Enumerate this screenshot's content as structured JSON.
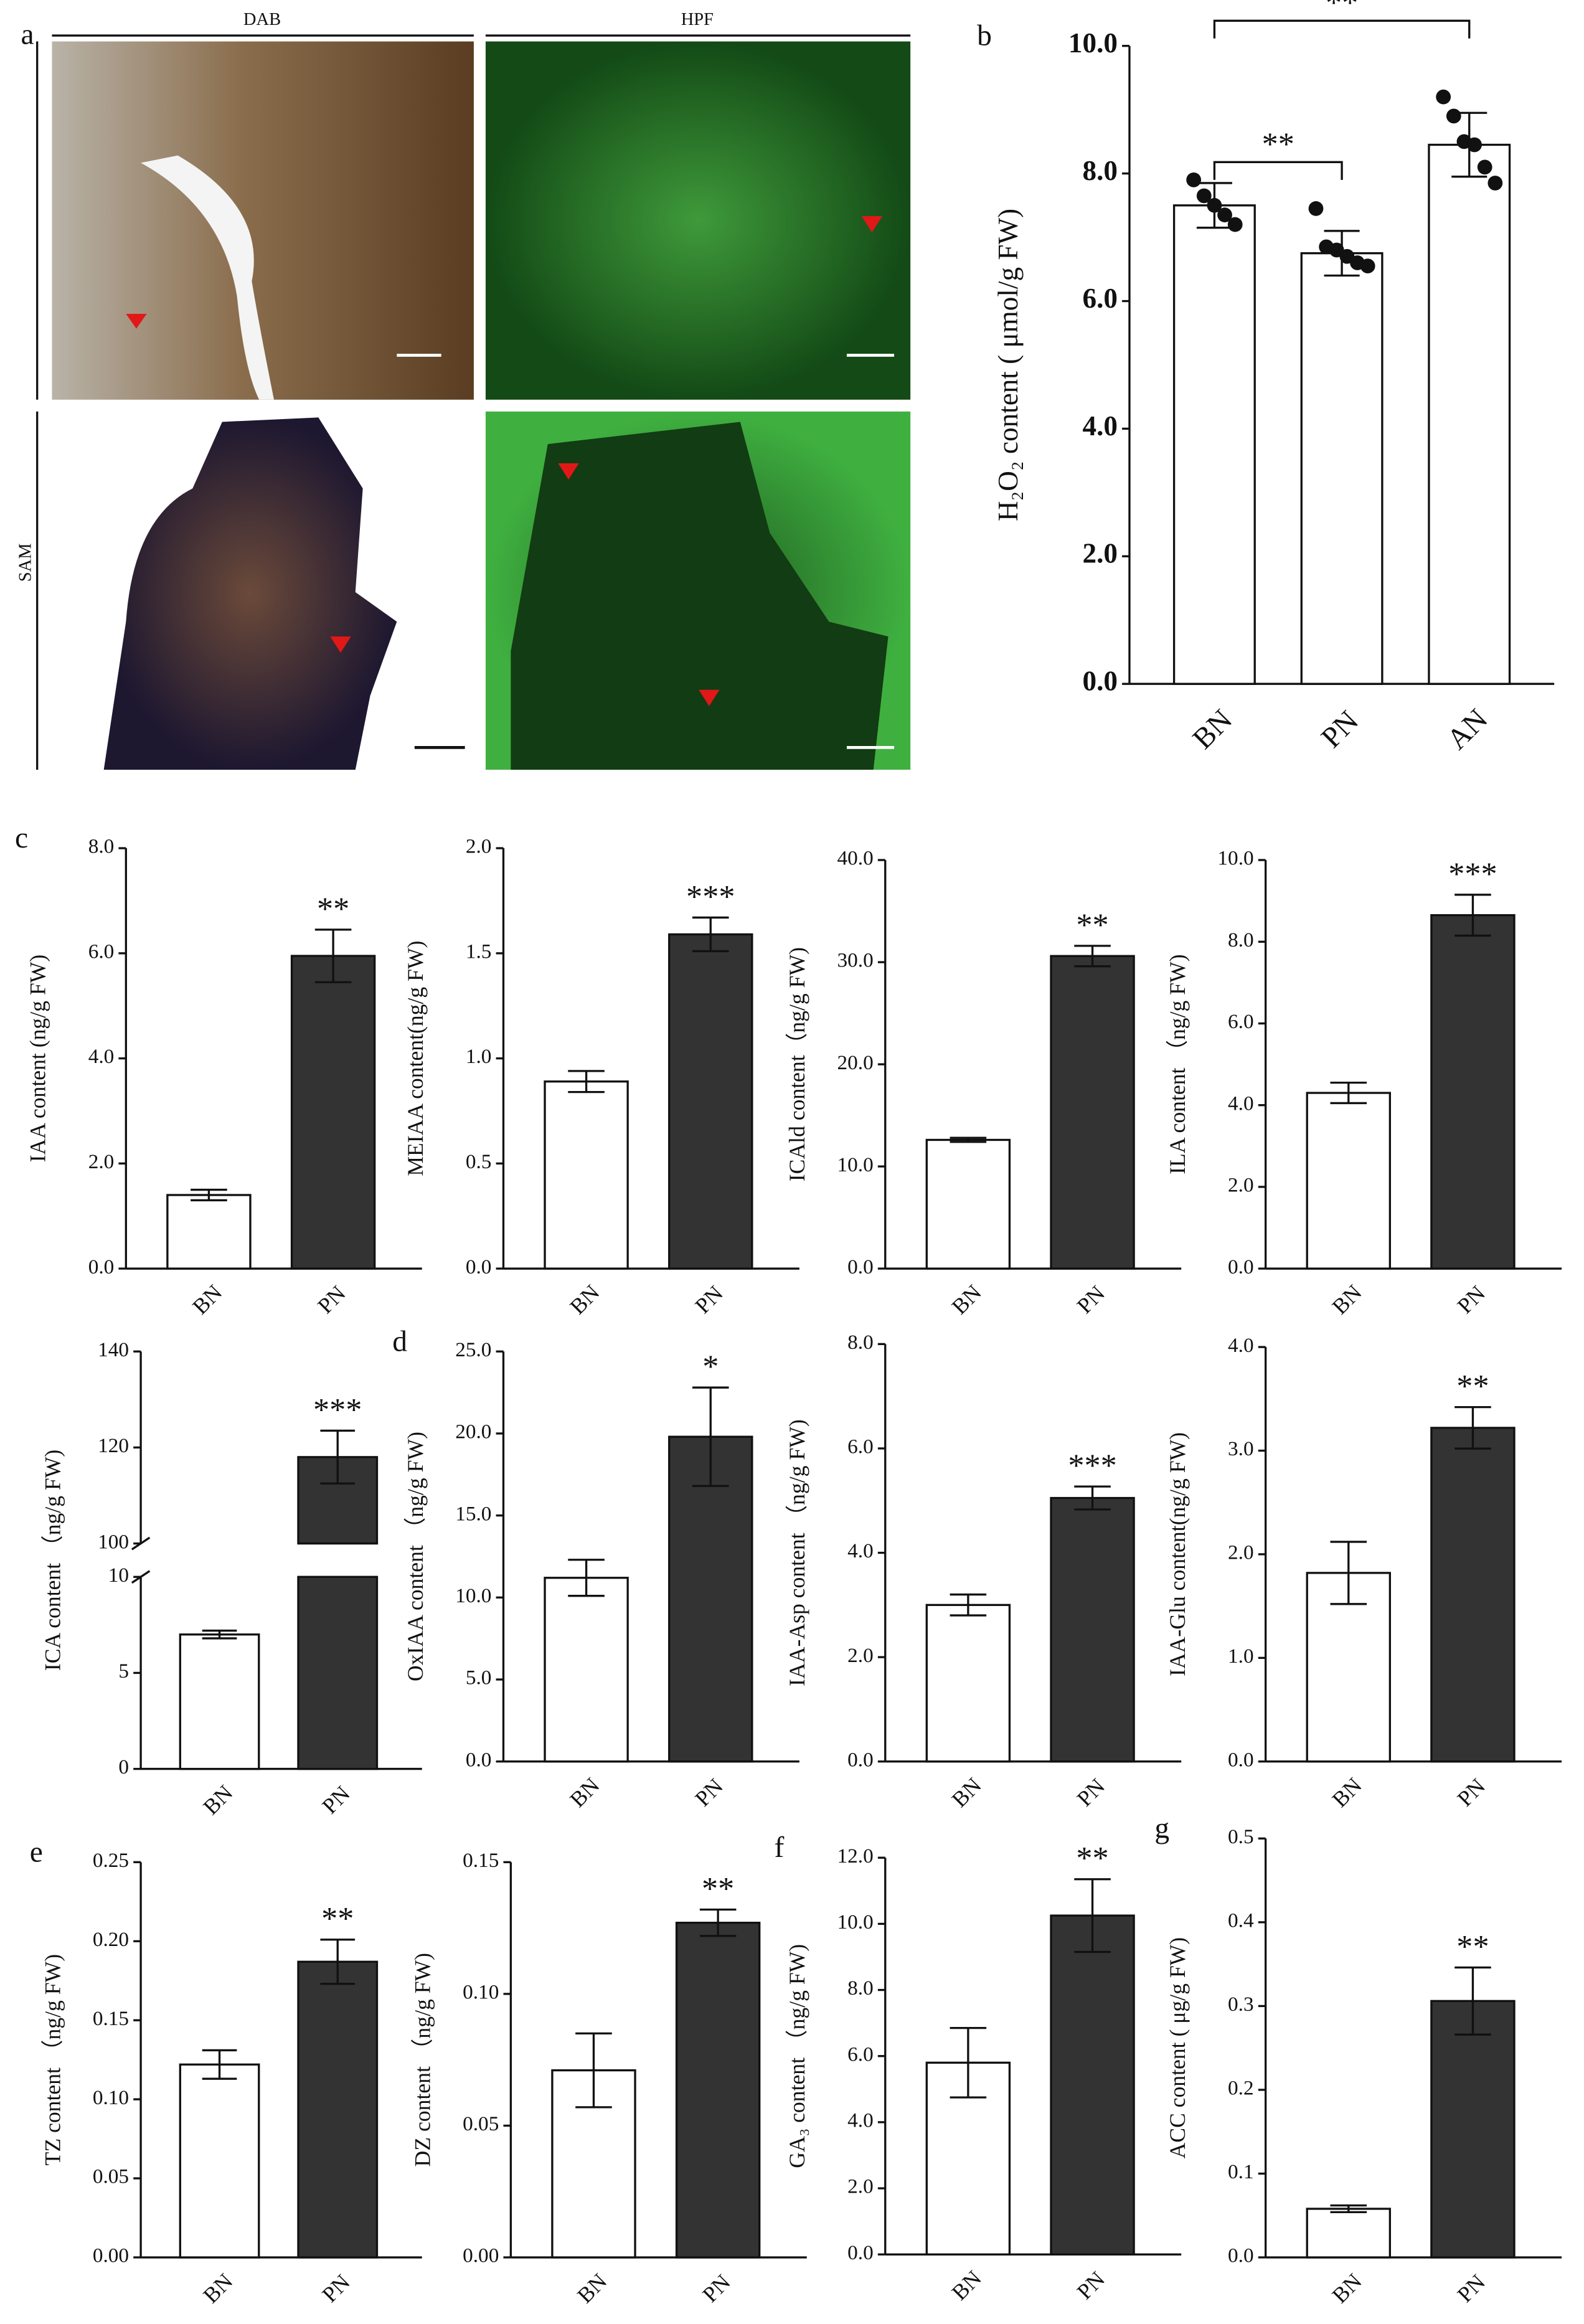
{
  "panel_a": {
    "label": "a",
    "columns": [
      "DAB",
      "HPF"
    ],
    "row_label": "SAM"
  },
  "chart_data": [
    {
      "type": "bar",
      "panel": "b",
      "ylabel": "H₂O₂ content ( μmol/g FW)",
      "categories": [
        "BN",
        "PN",
        "AN"
      ],
      "values": [
        7.5,
        6.75,
        8.45
      ],
      "errors": [
        0.35,
        0.35,
        0.5
      ],
      "colors": [
        "#ffffff",
        "#ffffff",
        "#ffffff"
      ],
      "points": [
        [
          7.9,
          7.65,
          7.5,
          7.35,
          7.2
        ],
        [
          7.45,
          6.85,
          6.8,
          6.7,
          6.6,
          6.55
        ],
        [
          9.2,
          8.9,
          8.5,
          8.45,
          8.1,
          7.85
        ]
      ],
      "brackets": [
        {
          "text": "**",
          "pair": [
            "BN",
            "PN"
          ]
        },
        {
          "text": "**",
          "pair": [
            "BN",
            "AN"
          ]
        }
      ],
      "ylim": [
        0,
        10
      ],
      "yticks": [
        {
          "value": 0,
          "label": "0.0"
        },
        {
          "value": 2,
          "label": "2.0"
        },
        {
          "value": 4,
          "label": "4.0"
        },
        {
          "value": 6,
          "label": "6.0"
        },
        {
          "value": 8,
          "label": "8.0"
        },
        {
          "value": 10,
          "label": "10.0"
        }
      ]
    },
    {
      "type": "bar",
      "panel": "c",
      "ylabel": "IAA content (ng/g FW)",
      "categories": [
        "BN",
        "PN"
      ],
      "values": [
        1.4,
        5.95
      ],
      "errors": [
        0.1,
        0.5
      ],
      "colors": [
        "#ffffff",
        "#333333"
      ],
      "value_annotations": [
        null,
        "**"
      ],
      "ylim": [
        0,
        8
      ],
      "yticks": [
        {
          "value": 0,
          "label": "0.0"
        },
        {
          "value": 2,
          "label": "2.0"
        },
        {
          "value": 4,
          "label": "4.0"
        },
        {
          "value": 6,
          "label": "6.0"
        },
        {
          "value": 8,
          "label": "8.0"
        }
      ]
    },
    {
      "type": "bar",
      "ylabel": "MEIAA content(ng/g FW)",
      "categories": [
        "BN",
        "PN"
      ],
      "values": [
        0.89,
        1.59
      ],
      "errors": [
        0.05,
        0.08
      ],
      "colors": [
        "#ffffff",
        "#333333"
      ],
      "value_annotations": [
        null,
        "***"
      ],
      "ylim": [
        0,
        2
      ],
      "yticks": [
        {
          "value": 0,
          "label": "0.0"
        },
        0.5,
        {
          "value": 1,
          "label": "1.0"
        },
        1.5,
        {
          "value": 2,
          "label": "2.0"
        }
      ]
    },
    {
      "type": "bar",
      "ylabel": "ICAld content（ng/g FW)",
      "categories": [
        "BN",
        "PN"
      ],
      "values": [
        12.6,
        30.6
      ],
      "errors": [
        0.2,
        1.0
      ],
      "colors": [
        "#ffffff",
        "#333333"
      ],
      "value_annotations": [
        null,
        "**"
      ],
      "ylim": [
        0,
        40
      ],
      "yticks": [
        {
          "value": 0,
          "label": "0.0"
        },
        {
          "value": 10,
          "label": "10.0"
        },
        {
          "value": 20,
          "label": "20.0"
        },
        {
          "value": 30,
          "label": "30.0"
        },
        {
          "value": 40,
          "label": "40.0"
        }
      ]
    },
    {
      "type": "bar",
      "ylabel": "ILA content （ng/g FW)",
      "categories": [
        "BN",
        "PN"
      ],
      "values": [
        4.3,
        8.65
      ],
      "errors": [
        0.25,
        0.5
      ],
      "colors": [
        "#ffffff",
        "#333333"
      ],
      "value_annotations": [
        null,
        "***"
      ],
      "ylim": [
        0,
        10
      ],
      "yticks": [
        {
          "value": 0,
          "label": "0.0"
        },
        {
          "value": 2,
          "label": "2.0"
        },
        {
          "value": 4,
          "label": "4.0"
        },
        {
          "value": 6,
          "label": "6.0"
        },
        {
          "value": 8,
          "label": "8.0"
        },
        {
          "value": 10,
          "label": "10.0"
        }
      ]
    },
    {
      "type": "bar",
      "ylabel": "ICA content （ng/g FW)",
      "categories": [
        "BN",
        "PN"
      ],
      "values": [
        7.0,
        118
      ],
      "errors": [
        0.2,
        5.5
      ],
      "colors": [
        "#ffffff",
        "#333333"
      ],
      "value_annotations": [
        null,
        "***"
      ],
      "ylim": [
        0,
        140
      ],
      "ybreak": [
        10,
        100
      ],
      "yticks": [
        0,
        5,
        10,
        100,
        120,
        140
      ]
    },
    {
      "type": "bar",
      "panel": "d",
      "ylabel": "OxIAA content （ng/g FW)",
      "categories": [
        "BN",
        "PN"
      ],
      "values": [
        11.2,
        19.8
      ],
      "errors": [
        1.1,
        3.0
      ],
      "colors": [
        "#ffffff",
        "#333333"
      ],
      "value_annotations": [
        null,
        "*"
      ],
      "ylim": [
        0,
        25
      ],
      "yticks": [
        {
          "value": 0,
          "label": "0.0"
        },
        {
          "value": 5,
          "label": "5.0"
        },
        {
          "value": 10,
          "label": "10.0"
        },
        {
          "value": 15,
          "label": "15.0"
        },
        {
          "value": 20,
          "label": "20.0"
        },
        {
          "value": 25,
          "label": "25.0"
        }
      ]
    },
    {
      "type": "bar",
      "ylabel": "IAA-Asp content （ng/g FW)",
      "categories": [
        "BN",
        "PN"
      ],
      "values": [
        3.0,
        5.05
      ],
      "errors": [
        0.2,
        0.22
      ],
      "colors": [
        "#ffffff",
        "#333333"
      ],
      "value_annotations": [
        null,
        "***"
      ],
      "ylim": [
        0,
        8
      ],
      "yticks": [
        {
          "value": 0,
          "label": "0.0"
        },
        {
          "value": 2,
          "label": "2.0"
        },
        {
          "value": 4,
          "label": "4.0"
        },
        {
          "value": 6,
          "label": "6.0"
        },
        {
          "value": 8,
          "label": "8.0"
        }
      ]
    },
    {
      "type": "bar",
      "ylabel": "IAA-Glu content(ng/g FW)",
      "categories": [
        "BN",
        "PN"
      ],
      "values": [
        1.82,
        3.22
      ],
      "errors": [
        0.3,
        0.2
      ],
      "colors": [
        "#ffffff",
        "#333333"
      ],
      "value_annotations": [
        null,
        "**"
      ],
      "ylim": [
        0,
        4
      ],
      "yticks": [
        {
          "value": 0,
          "label": "0.0"
        },
        {
          "value": 1,
          "label": "1.0"
        },
        {
          "value": 2,
          "label": "2.0"
        },
        {
          "value": 3,
          "label": "3.0"
        },
        {
          "value": 4,
          "label": "4.0"
        }
      ]
    },
    {
      "type": "bar",
      "panel": "e",
      "ylabel": "TZ content （ng/g FW)",
      "categories": [
        "BN",
        "PN"
      ],
      "values": [
        0.122,
        0.187
      ],
      "errors": [
        0.009,
        0.014
      ],
      "colors": [
        "#ffffff",
        "#333333"
      ],
      "value_annotations": [
        null,
        "**"
      ],
      "ylim": [
        0,
        0.25
      ],
      "yticks": [
        {
          "value": 0,
          "label": "0.00"
        },
        0.05,
        {
          "value": 0.1,
          "label": "0.10"
        },
        0.15,
        {
          "value": 0.2,
          "label": "0.20"
        },
        0.25
      ]
    },
    {
      "type": "bar",
      "ylabel": "DZ content （ng/g FW)",
      "categories": [
        "BN",
        "PN"
      ],
      "values": [
        0.071,
        0.127
      ],
      "errors": [
        0.014,
        0.005
      ],
      "colors": [
        "#ffffff",
        "#333333"
      ],
      "value_annotations": [
        null,
        "**"
      ],
      "ylim": [
        0,
        0.15
      ],
      "yticks": [
        {
          "value": 0,
          "label": "0.00"
        },
        0.05,
        {
          "value": 0.1,
          "label": "0.10"
        },
        0.15
      ]
    },
    {
      "type": "bar",
      "panel": "f",
      "ylabel": "GA₃ content （ng/g FW)",
      "categories": [
        "BN",
        "PN"
      ],
      "values": [
        5.8,
        10.25
      ],
      "errors": [
        1.05,
        1.1
      ],
      "colors": [
        "#ffffff",
        "#333333"
      ],
      "value_annotations": [
        null,
        "**"
      ],
      "ylim": [
        0,
        12
      ],
      "yticks": [
        {
          "value": 0,
          "label": "0.0"
        },
        {
          "value": 2,
          "label": "2.0"
        },
        {
          "value": 4,
          "label": "4.0"
        },
        {
          "value": 6,
          "label": "6.0"
        },
        {
          "value": 8,
          "label": "8.0"
        },
        {
          "value": 10,
          "label": "10.0"
        },
        {
          "value": 12,
          "label": "12.0"
        }
      ]
    },
    {
      "type": "bar",
      "panel": "g",
      "ylabel": "ACC content ( μg/g FW)",
      "categories": [
        "BN",
        "PN"
      ],
      "values": [
        0.058,
        0.306
      ],
      "errors": [
        0.004,
        0.04
      ],
      "colors": [
        "#ffffff",
        "#333333"
      ],
      "value_annotations": [
        null,
        "**"
      ],
      "ylim": [
        0,
        0.5
      ],
      "yticks": [
        {
          "value": 0,
          "label": "0.0"
        },
        0.1,
        0.2,
        0.3,
        0.4,
        0.5
      ]
    }
  ]
}
